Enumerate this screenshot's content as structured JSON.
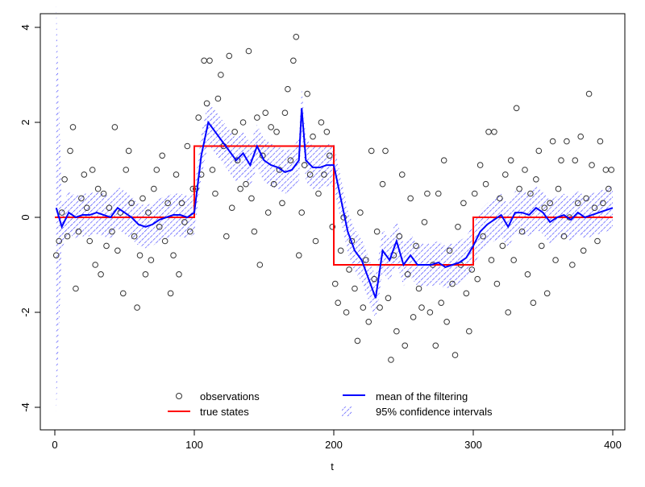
{
  "chart_data": {
    "type": "line",
    "title": "",
    "xlabel": "t",
    "ylabel": "",
    "xlim": [
      0,
      400
    ],
    "ylim": [
      -4.2,
      4.2
    ],
    "x_ticks": [
      "0",
      "100",
      "200",
      "300",
      "400"
    ],
    "y_ticks": [
      "-4",
      "-2",
      "0",
      "2",
      "4"
    ],
    "grid": false,
    "legend_position": "bottom-center",
    "legend": {
      "observations": "observations",
      "true_states": "true states",
      "mean": "mean of the filtering",
      "ci": "95% confidence intervals"
    },
    "colors": {
      "observations": "#000000",
      "true_states": "#ff0000",
      "mean": "#0000ff",
      "ci": "#0000ff"
    },
    "true_states": {
      "x": [
        0,
        100,
        100,
        200,
        200,
        300,
        300,
        400
      ],
      "y": [
        0,
        0,
        1.5,
        1.5,
        -1,
        -1,
        0,
        0
      ]
    },
    "filter_mean": {
      "x": [
        1,
        5,
        10,
        15,
        20,
        25,
        30,
        35,
        40,
        45,
        50,
        55,
        60,
        65,
        70,
        75,
        80,
        85,
        90,
        95,
        100,
        105,
        110,
        115,
        120,
        125,
        130,
        135,
        140,
        145,
        150,
        155,
        160,
        165,
        170,
        175,
        177,
        180,
        185,
        190,
        195,
        200,
        205,
        210,
        215,
        220,
        225,
        230,
        235,
        240,
        245,
        250,
        255,
        260,
        265,
        270,
        275,
        280,
        285,
        290,
        295,
        300,
        305,
        310,
        315,
        320,
        325,
        330,
        335,
        340,
        345,
        350,
        355,
        360,
        365,
        370,
        375,
        380,
        385,
        390,
        395,
        400
      ],
      "y": [
        0.2,
        -0.2,
        0.1,
        0.0,
        0.05,
        0.05,
        0.1,
        0.05,
        0.0,
        0.2,
        0.1,
        0.0,
        -0.15,
        -0.2,
        -0.15,
        -0.05,
        0.0,
        0.05,
        0.05,
        0.0,
        0.1,
        1.3,
        2.0,
        1.8,
        1.6,
        1.4,
        1.2,
        1.35,
        1.1,
        1.5,
        1.2,
        1.1,
        1.05,
        0.95,
        1.0,
        1.2,
        2.3,
        1.2,
        1.05,
        1.05,
        1.1,
        1.1,
        0.4,
        -0.3,
        -0.7,
        -0.9,
        -1.3,
        -1.7,
        -0.7,
        -0.9,
        -0.5,
        -1.0,
        -0.8,
        -1.0,
        -1.0,
        -1.0,
        -0.95,
        -1.05,
        -1.0,
        -0.95,
        -0.85,
        -0.6,
        -0.3,
        -0.15,
        -0.05,
        0.05,
        -0.2,
        0.1,
        0.1,
        0.05,
        0.2,
        0.1,
        -0.1,
        0.0,
        0.05,
        -0.05,
        0.1,
        0.0,
        0.05,
        0.1,
        0.15,
        0.2
      ]
    },
    "ci_halfwidth": 0.45,
    "observations": [
      [
        1,
        -0.8
      ],
      [
        3,
        -0.5
      ],
      [
        5,
        0.1
      ],
      [
        7,
        0.8
      ],
      [
        9,
        -0.4
      ],
      [
        11,
        1.4
      ],
      [
        13,
        1.9
      ],
      [
        15,
        -1.5
      ],
      [
        17,
        -0.3
      ],
      [
        19,
        0.4
      ],
      [
        21,
        0.9
      ],
      [
        23,
        0.2
      ],
      [
        25,
        -0.5
      ],
      [
        27,
        1.0
      ],
      [
        29,
        -1.0
      ],
      [
        31,
        0.6
      ],
      [
        33,
        -1.2
      ],
      [
        35,
        0.5
      ],
      [
        37,
        -0.6
      ],
      [
        39,
        0.2
      ],
      [
        41,
        -0.3
      ],
      [
        43,
        1.9
      ],
      [
        45,
        -0.7
      ],
      [
        47,
        0.1
      ],
      [
        49,
        -1.6
      ],
      [
        51,
        1.0
      ],
      [
        53,
        1.4
      ],
      [
        55,
        0.3
      ],
      [
        57,
        -0.4
      ],
      [
        59,
        -1.9
      ],
      [
        61,
        -0.8
      ],
      [
        63,
        0.4
      ],
      [
        65,
        -1.2
      ],
      [
        67,
        0.1
      ],
      [
        69,
        -0.9
      ],
      [
        71,
        0.6
      ],
      [
        73,
        1.0
      ],
      [
        75,
        -0.2
      ],
      [
        77,
        1.3
      ],
      [
        79,
        -0.5
      ],
      [
        81,
        0.3
      ],
      [
        83,
        -1.6
      ],
      [
        85,
        -0.8
      ],
      [
        87,
        0.9
      ],
      [
        89,
        -1.2
      ],
      [
        91,
        0.3
      ],
      [
        93,
        -0.1
      ],
      [
        95,
        1.5
      ],
      [
        97,
        -0.3
      ],
      [
        99,
        0.6
      ],
      [
        101,
        0.6
      ],
      [
        103,
        2.1
      ],
      [
        105,
        0.9
      ],
      [
        107,
        3.3
      ],
      [
        109,
        2.4
      ],
      [
        111,
        3.3
      ],
      [
        113,
        1.0
      ],
      [
        115,
        0.5
      ],
      [
        117,
        2.5
      ],
      [
        119,
        3.0
      ],
      [
        121,
        1.5
      ],
      [
        123,
        -0.4
      ],
      [
        125,
        3.4
      ],
      [
        127,
        0.2
      ],
      [
        129,
        1.8
      ],
      [
        131,
        1.2
      ],
      [
        133,
        0.6
      ],
      [
        135,
        2.0
      ],
      [
        137,
        0.7
      ],
      [
        139,
        3.5
      ],
      [
        141,
        0.4
      ],
      [
        143,
        -0.3
      ],
      [
        145,
        2.1
      ],
      [
        147,
        -1.0
      ],
      [
        149,
        1.3
      ],
      [
        151,
        2.2
      ],
      [
        153,
        0.1
      ],
      [
        155,
        1.9
      ],
      [
        157,
        0.7
      ],
      [
        159,
        1.8
      ],
      [
        161,
        1.0
      ],
      [
        163,
        0.3
      ],
      [
        165,
        2.2
      ],
      [
        167,
        2.7
      ],
      [
        169,
        1.2
      ],
      [
        171,
        3.3
      ],
      [
        173,
        3.8
      ],
      [
        175,
        -0.8
      ],
      [
        177,
        0.1
      ],
      [
        179,
        1.1
      ],
      [
        181,
        2.6
      ],
      [
        183,
        0.9
      ],
      [
        185,
        1.7
      ],
      [
        187,
        -0.5
      ],
      [
        189,
        0.5
      ],
      [
        191,
        2.0
      ],
      [
        193,
        0.9
      ],
      [
        195,
        1.8
      ],
      [
        197,
        1.3
      ],
      [
        199,
        -0.2
      ],
      [
        201,
        -1.4
      ],
      [
        203,
        -1.8
      ],
      [
        205,
        -0.7
      ],
      [
        207,
        0.0
      ],
      [
        209,
        -2.0
      ],
      [
        211,
        -1.1
      ],
      [
        213,
        -0.5
      ],
      [
        215,
        -1.5
      ],
      [
        217,
        -2.6
      ],
      [
        219,
        0.1
      ],
      [
        221,
        -1.9
      ],
      [
        223,
        -0.9
      ],
      [
        225,
        -2.2
      ],
      [
        227,
        1.4
      ],
      [
        229,
        -1.3
      ],
      [
        231,
        -0.3
      ],
      [
        233,
        -1.9
      ],
      [
        235,
        0.7
      ],
      [
        237,
        1.4
      ],
      [
        239,
        -1.7
      ],
      [
        241,
        -3.0
      ],
      [
        243,
        -0.8
      ],
      [
        245,
        -2.4
      ],
      [
        247,
        -0.4
      ],
      [
        249,
        0.9
      ],
      [
        251,
        -2.7
      ],
      [
        253,
        -1.2
      ],
      [
        255,
        0.4
      ],
      [
        257,
        -2.1
      ],
      [
        259,
        -0.6
      ],
      [
        261,
        -1.5
      ],
      [
        263,
        -1.9
      ],
      [
        265,
        -0.1
      ],
      [
        267,
        0.5
      ],
      [
        269,
        -2.0
      ],
      [
        271,
        -1.0
      ],
      [
        273,
        -2.7
      ],
      [
        275,
        0.5
      ],
      [
        277,
        -1.8
      ],
      [
        279,
        1.2
      ],
      [
        281,
        -2.2
      ],
      [
        283,
        -0.7
      ],
      [
        285,
        -1.4
      ],
      [
        287,
        -2.9
      ],
      [
        289,
        -0.2
      ],
      [
        291,
        -1.0
      ],
      [
        293,
        0.3
      ],
      [
        295,
        -1.6
      ],
      [
        297,
        -2.4
      ],
      [
        299,
        -1.1
      ],
      [
        301,
        0.5
      ],
      [
        303,
        -1.3
      ],
      [
        305,
        1.1
      ],
      [
        307,
        -0.4
      ],
      [
        309,
        0.7
      ],
      [
        311,
        1.8
      ],
      [
        313,
        -0.9
      ],
      [
        315,
        1.8
      ],
      [
        317,
        -1.4
      ],
      [
        319,
        0.4
      ],
      [
        321,
        -0.6
      ],
      [
        323,
        0.9
      ],
      [
        325,
        -2.0
      ],
      [
        327,
        1.2
      ],
      [
        329,
        -0.9
      ],
      [
        331,
        2.3
      ],
      [
        333,
        0.6
      ],
      [
        335,
        -0.3
      ],
      [
        337,
        1.0
      ],
      [
        339,
        -1.2
      ],
      [
        341,
        0.5
      ],
      [
        343,
        -1.8
      ],
      [
        345,
        0.8
      ],
      [
        347,
        1.4
      ],
      [
        349,
        -0.6
      ],
      [
        351,
        0.2
      ],
      [
        353,
        -1.6
      ],
      [
        355,
        0.3
      ],
      [
        357,
        1.6
      ],
      [
        359,
        -0.9
      ],
      [
        361,
        0.6
      ],
      [
        363,
        1.2
      ],
      [
        365,
        -0.4
      ],
      [
        367,
        1.6
      ],
      [
        369,
        0.0
      ],
      [
        371,
        -1.0
      ],
      [
        373,
        1.2
      ],
      [
        375,
        0.3
      ],
      [
        377,
        1.7
      ],
      [
        379,
        -0.7
      ],
      [
        381,
        0.4
      ],
      [
        383,
        2.6
      ],
      [
        385,
        1.1
      ],
      [
        387,
        0.2
      ],
      [
        389,
        -0.5
      ],
      [
        391,
        1.6
      ],
      [
        393,
        0.3
      ],
      [
        395,
        1.0
      ],
      [
        397,
        0.6
      ],
      [
        399,
        1.0
      ]
    ]
  }
}
